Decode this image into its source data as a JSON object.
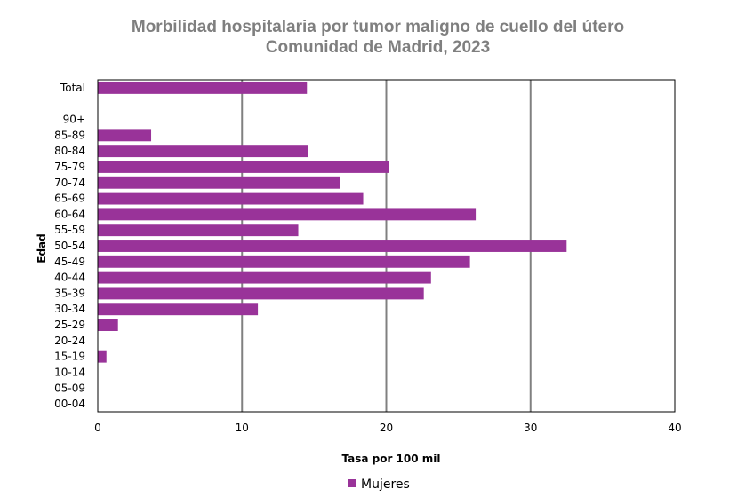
{
  "chart_data": {
    "type": "bar",
    "orientation": "horizontal",
    "title": "Morbilidad hospitalaria por tumor maligno de cuello del útero",
    "subtitle": "Comunidad de Madrid, 2023",
    "xlabel": "Tasa por 100 mil",
    "ylabel": "Edad",
    "xlim": [
      0,
      40
    ],
    "xticks": [
      0,
      10,
      20,
      30,
      40
    ],
    "grid": true,
    "legend_position": "bottom",
    "categories": [
      "Total",
      "",
      "90+",
      "85-89",
      "80-84",
      "75-79",
      "70-74",
      "65-69",
      "60-64",
      "55-59",
      "50-54",
      "45-49",
      "40-44",
      "35-39",
      "30-34",
      "25-29",
      "20-24",
      "15-19",
      "10-14",
      "05-09",
      "00-04"
    ],
    "series": [
      {
        "name": "Mujeres",
        "color": "#993399",
        "values": [
          14.5,
          null,
          0,
          3.7,
          14.6,
          20.2,
          16.8,
          18.4,
          26.2,
          13.9,
          32.5,
          25.8,
          23.1,
          22.6,
          11.1,
          1.4,
          0,
          0.6,
          0,
          0,
          0
        ]
      }
    ]
  }
}
